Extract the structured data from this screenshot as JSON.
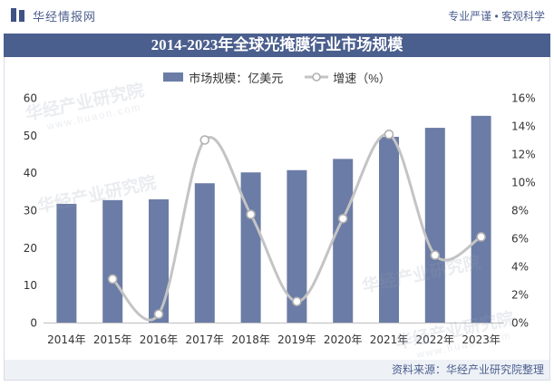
{
  "header": {
    "logo_icon": "logo-bars-icon",
    "logo_text": "华经情报网",
    "slogan": "专业严谨 • 客观科学"
  },
  "source": "资料来源：华经产业研究院整理",
  "watermark": {
    "text": "华经产业研究院",
    "url": "www.huaon.com"
  },
  "colors": {
    "brand": "#4b5f8e",
    "title_bar": "#4b5f8e",
    "bar": "#6b7ca6",
    "line": "#c4c4c4",
    "marker": "#b0b0b0",
    "axis": "#bfbfbf",
    "footer_bg": "#eef1f6"
  },
  "chart_data": {
    "type": "bar",
    "title": "2014-2023年全球光掩膜行业市场规模",
    "categories": [
      "2014年",
      "2015年",
      "2016年",
      "2017年",
      "2018年",
      "2019年",
      "2020年",
      "2021年",
      "2022年",
      "2023年"
    ],
    "series": [
      {
        "name": "市场规模：亿美元",
        "type": "bar",
        "axis": "left",
        "values": [
          31.7,
          32.7,
          32.9,
          37.2,
          40.1,
          40.7,
          43.7,
          49.6,
          52.0,
          55.2
        ]
      },
      {
        "name": "增速（%）",
        "type": "line",
        "axis": "right",
        "smooth": true,
        "values": [
          null,
          3.1,
          0.6,
          13.0,
          7.7,
          1.5,
          7.4,
          13.4,
          4.8,
          6.1
        ]
      }
    ],
    "y_left": {
      "min": 0,
      "max": 60,
      "step": 10,
      "tick_labels": [
        "0",
        "10",
        "20",
        "30",
        "40",
        "50",
        "60"
      ]
    },
    "y_right": {
      "min": 0,
      "max": 16,
      "step": 2,
      "tick_labels": [
        "0%",
        "2%",
        "4%",
        "6%",
        "8%",
        "10%",
        "12%",
        "14%",
        "16%"
      ]
    },
    "grid": false,
    "legend_position": "top"
  }
}
